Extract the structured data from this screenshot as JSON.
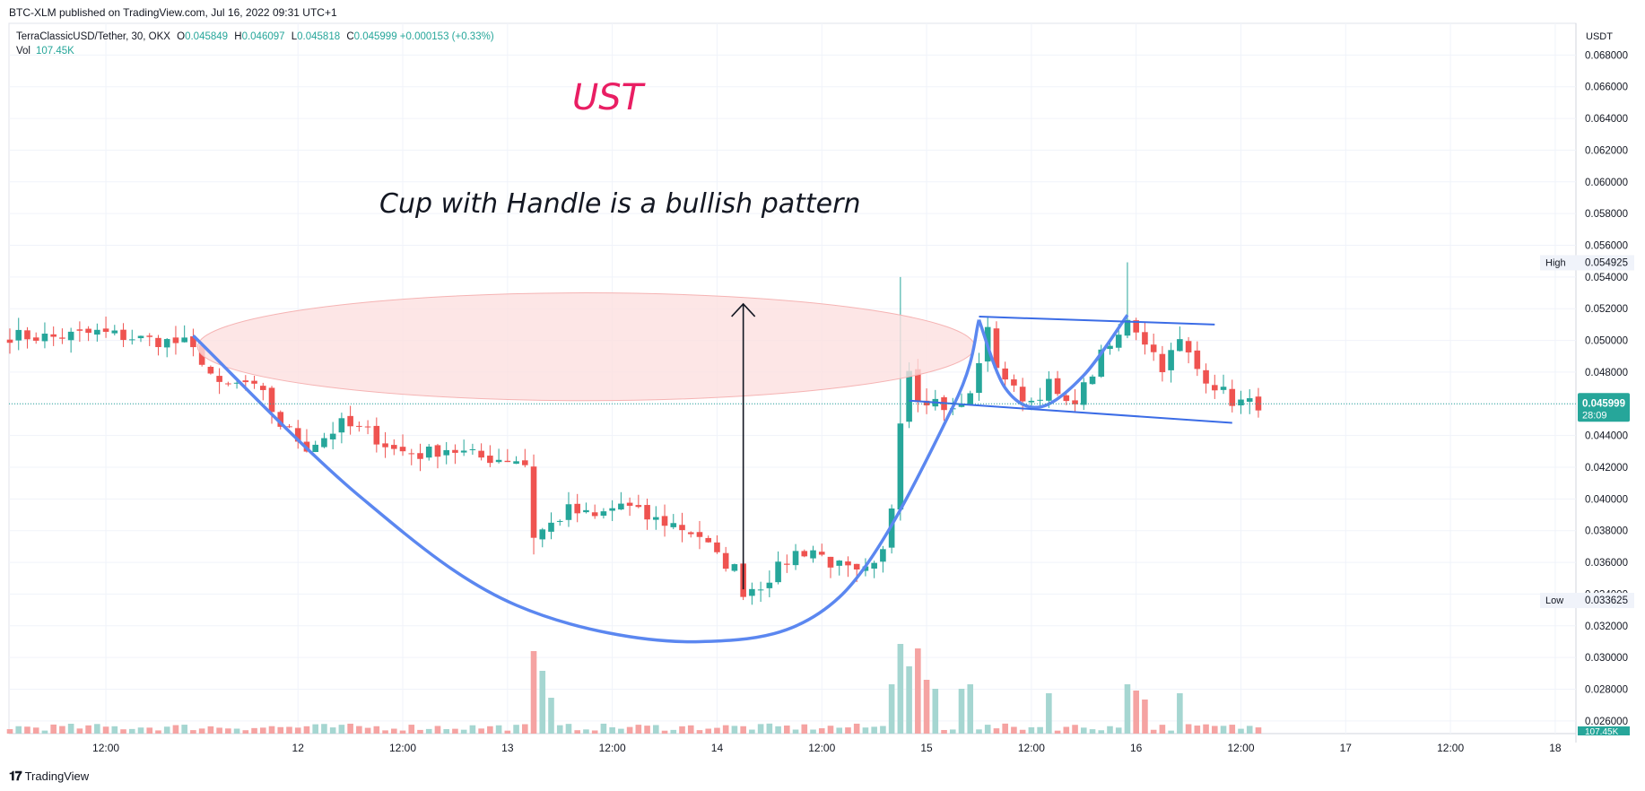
{
  "header": {
    "published": "BTC-XLM published on TradingView.com, Jul 16, 2022 09:31 UTC+1"
  },
  "legend": {
    "symbol": "TerraClassicUSD/Tether, 30, OKX",
    "o_label": "O",
    "o": "0.045849",
    "h_label": "H",
    "h": "0.046097",
    "l_label": "L",
    "l": "0.045818",
    "c_label": "C",
    "c": "0.045999",
    "change": "+0.000153 (+0.33%)",
    "vol_label": "Vol",
    "vol": "107.45K"
  },
  "annotations": {
    "title": "UST",
    "text": "Cup with Handle is a bullish pattern"
  },
  "footer": {
    "brand": "TradingView",
    "logo": "tradingview-logo"
  },
  "colors": {
    "up": "#26a69a",
    "down": "#ef5350",
    "up_vol": "#a5d6d1",
    "down_vol": "#f5a3a2",
    "pattern": "#5b87f0",
    "ellipse_fill": "#fde0e0",
    "ellipse_stroke": "#f5b3b3",
    "title": "#e91e63",
    "price_tag": "#26a69a",
    "grid": "#f0f3fa"
  },
  "chart_data": {
    "type": "candlestick",
    "y_unit": "USDT",
    "y_range": [
      0.0252,
      0.07
    ],
    "y_ticks": [
      "0.068000",
      "0.066000",
      "0.064000",
      "0.062000",
      "0.060000",
      "0.058000",
      "0.056000",
      "0.054000",
      "0.052000",
      "0.050000",
      "0.048000",
      "0.046000",
      "0.044000",
      "0.042000",
      "0.040000",
      "0.038000",
      "0.036000",
      "0.034000",
      "0.032000",
      "0.030000",
      "0.028000",
      "0.026000"
    ],
    "x_ticks": [
      "12:00",
      "12",
      "12:00",
      "13",
      "12:00",
      "14",
      "12:00",
      "15",
      "12:00",
      "16",
      "12:00",
      "17",
      "12:00",
      "18",
      "12:00"
    ],
    "x_tick_bars": [
      11,
      33,
      45,
      57,
      69,
      81,
      93,
      105,
      117,
      129,
      141,
      153,
      165,
      177,
      189
    ],
    "interval": "30",
    "high_marker": {
      "label": "High",
      "value": "0.054925"
    },
    "low_marker": {
      "label": "Low",
      "value": "0.033625"
    },
    "last_price": {
      "value": "0.045999",
      "countdown": "28:09"
    },
    "volume_tag": "107.45K",
    "close_anchors": [
      [
        0,
        0.0503
      ],
      [
        5,
        0.0502
      ],
      [
        10,
        0.0505
      ],
      [
        15,
        0.0501
      ],
      [
        20,
        0.0498
      ],
      [
        22,
        0.0488
      ],
      [
        24,
        0.047
      ],
      [
        27,
        0.0473
      ],
      [
        29,
        0.0465
      ],
      [
        31,
        0.0447
      ],
      [
        34,
        0.0433
      ],
      [
        36,
        0.0439
      ],
      [
        38,
        0.0447
      ],
      [
        41,
        0.0442
      ],
      [
        44,
        0.0431
      ],
      [
        47,
        0.0428
      ],
      [
        50,
        0.0432
      ],
      [
        54,
        0.0426
      ],
      [
        58,
        0.0425
      ],
      [
        59,
        0.0422
      ],
      [
        60,
        0.0377
      ],
      [
        62,
        0.0384
      ],
      [
        64,
        0.0393
      ],
      [
        67,
        0.0388
      ],
      [
        70,
        0.0397
      ],
      [
        73,
        0.0388
      ],
      [
        76,
        0.0384
      ],
      [
        79,
        0.0377
      ],
      [
        81,
        0.0363
      ],
      [
        83,
        0.0356
      ],
      [
        84,
        0.0342
      ],
      [
        86,
        0.0346
      ],
      [
        88,
        0.0356
      ],
      [
        90,
        0.0366
      ],
      [
        92,
        0.0368
      ],
      [
        94,
        0.036
      ],
      [
        97,
        0.0352
      ],
      [
        99,
        0.0356
      ],
      [
        100,
        0.0366
      ],
      [
        101,
        0.0396
      ],
      [
        102,
        0.0452
      ],
      [
        103,
        0.0483
      ],
      [
        104,
        0.0465
      ],
      [
        106,
        0.0462
      ],
      [
        108,
        0.0455
      ],
      [
        110,
        0.0465
      ],
      [
        111,
        0.0488
      ],
      [
        112,
        0.0505
      ],
      [
        113,
        0.0485
      ],
      [
        115,
        0.0468
      ],
      [
        117,
        0.0462
      ],
      [
        119,
        0.0472
      ],
      [
        121,
        0.0458
      ],
      [
        123,
        0.047
      ],
      [
        125,
        0.049
      ],
      [
        127,
        0.0502
      ],
      [
        128,
        0.0515
      ],
      [
        130,
        0.05
      ],
      [
        132,
        0.0484
      ],
      [
        134,
        0.0499
      ],
      [
        136,
        0.0482
      ],
      [
        138,
        0.0472
      ],
      [
        140,
        0.0462
      ],
      [
        142,
        0.046
      ],
      [
        143,
        0.046
      ]
    ],
    "volume_scale_max": 100,
    "volume_spikes": [
      [
        60,
        92
      ],
      [
        61,
        70
      ],
      [
        62,
        40
      ],
      [
        101,
        55
      ],
      [
        102,
        100
      ],
      [
        103,
        75
      ],
      [
        104,
        95
      ],
      [
        105,
        60
      ],
      [
        106,
        50
      ],
      [
        109,
        50
      ],
      [
        110,
        55
      ],
      [
        119,
        45
      ],
      [
        128,
        55
      ],
      [
        129,
        48
      ],
      [
        130,
        38
      ],
      [
        134,
        45
      ]
    ],
    "volume_base": 8,
    "pattern": {
      "cup_points": [
        [
          21,
          0.0503
        ],
        [
          40,
          0.0402
        ],
        [
          58,
          0.0333
        ],
        [
          79,
          0.031
        ],
        [
          95,
          0.0338
        ],
        [
          108,
          0.0458
        ],
        [
          111,
          0.0513
        ]
      ],
      "handle_points": [
        [
          111,
          0.0513
        ],
        [
          114,
          0.047
        ],
        [
          118,
          0.0458
        ],
        [
          123,
          0.0478
        ],
        [
          128,
          0.0516
        ]
      ],
      "upper_line": [
        [
          111,
          0.0515
        ],
        [
          138,
          0.051
        ]
      ],
      "lower_line": [
        [
          103,
          0.0462
        ],
        [
          140,
          0.0448
        ]
      ],
      "arrow": {
        "x_bar": 84,
        "from": 0.0343,
        "to": 0.0523
      },
      "ellipse": {
        "center_bar": 66,
        "center_price": 0.0496,
        "rx_bars": 44.5,
        "ry_price": 0.0034
      }
    }
  }
}
